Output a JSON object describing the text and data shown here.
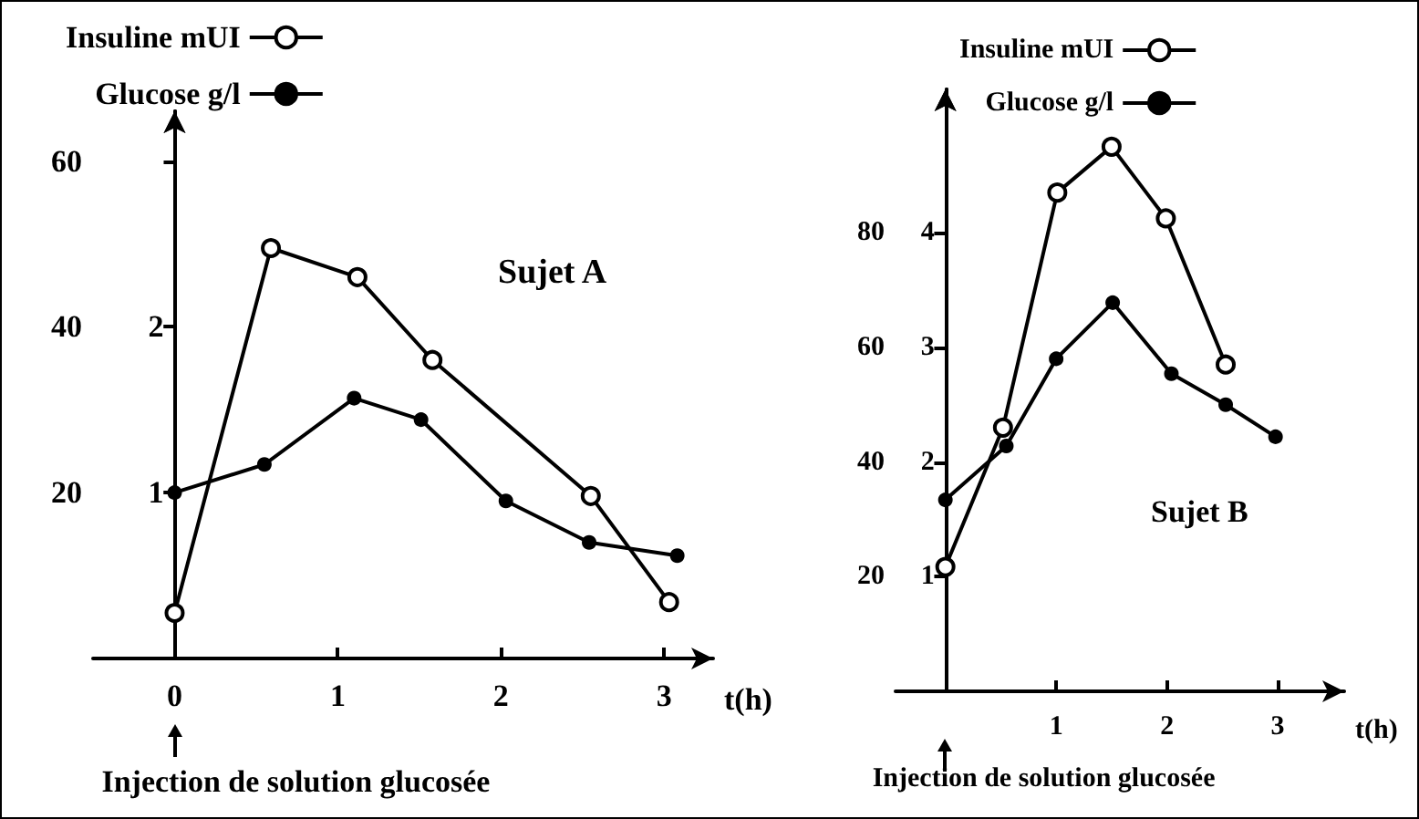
{
  "chart_data": [
    {
      "type": "line",
      "xlabel": "t(h)",
      "legend": "top left",
      "grid": false,
      "marker": "circle",
      "xlim": [
        -0.5,
        3.3
      ],
      "xticks": [
        0,
        1,
        2,
        3
      ],
      "ylim": [
        0,
        66
      ],
      "yticks": [
        20,
        40,
        60
      ],
      "y2lim": [
        0,
        3.3
      ],
      "y2ticks": [
        1,
        2
      ],
      "series": [
        {
          "name": "Insuline mUI",
          "color": "#000000",
          "x": [
            0,
            0.59,
            1.12,
            1.58,
            2.55,
            3.03
          ],
          "values": [
            5.5,
            49.5,
            46,
            36,
            19.6,
            6.8
          ]
        },
        {
          "name": "Glucose g/l",
          "color": "#000000",
          "axis": "y2",
          "x": [
            0,
            0.55,
            1.1,
            1.51,
            2.03,
            2.54,
            3.08
          ],
          "values": [
            1,
            1.17,
            1.57,
            1.44,
            0.95,
            0.7,
            0.62
          ]
        }
      ],
      "annotations": [
        "Sujet A",
        "Injection de solution glucosée"
      ]
    },
    {
      "type": "line",
      "xlabel": "t(h)",
      "legend": "top left",
      "grid": false,
      "marker": "circle",
      "xlim": [
        -0.45,
        3.6
      ],
      "xticks": [
        1,
        2,
        3
      ],
      "ylim": [
        0,
        105
      ],
      "yticks": [
        20,
        40,
        60,
        80
      ],
      "y2lim": [
        0,
        5.25
      ],
      "y2ticks": [
        1,
        2,
        3,
        4
      ],
      "series": [
        {
          "name": "Insuline mUI",
          "color": "#000000",
          "x": [
            0,
            0.52,
            1.01,
            1.5,
            1.99,
            2.53
          ],
          "values": [
            21.7,
            46,
            87,
            95,
            82.5,
            57
          ]
        },
        {
          "name": "Glucose g/l",
          "color": "#000000",
          "axis": "y2",
          "x": [
            0,
            0.55,
            1,
            1.51,
            2.04,
            2.53,
            2.98
          ],
          "values": [
            1.67,
            2.14,
            2.9,
            3.39,
            2.77,
            2.5,
            2.22
          ]
        }
      ],
      "annotations": [
        "Sujet B",
        "Injection de solution glucosée"
      ]
    }
  ]
}
